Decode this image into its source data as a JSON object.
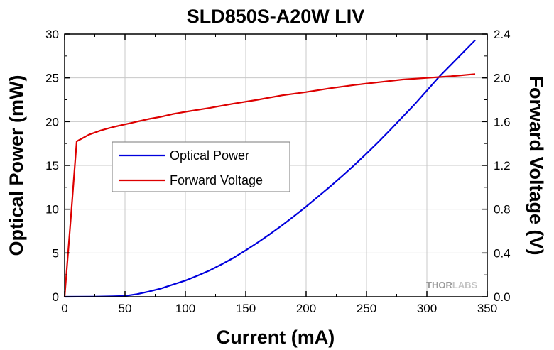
{
  "chart_data": {
    "type": "line",
    "title": "SLD850S-A20W LIV",
    "xlabel": "Current (mA)",
    "ylabel": "Optical Power (mW)",
    "y2label": "Forward Voltage (V)",
    "xlim": [
      0,
      350
    ],
    "ylim": [
      0,
      30
    ],
    "y2lim": [
      0,
      2.4
    ],
    "xticks": [
      "0",
      "50",
      "100",
      "150",
      "200",
      "250",
      "300",
      "350"
    ],
    "yticks": [
      "0",
      "5",
      "10",
      "15",
      "20",
      "25",
      "30"
    ],
    "y2ticks": [
      "0.0",
      "0.4",
      "0.8",
      "1.2",
      "1.6",
      "2.0",
      "2.4"
    ],
    "grid": true,
    "legend_position": "center-left",
    "series": [
      {
        "name": "Optical Power",
        "axis": "left",
        "color": "#0000dd",
        "x": [
          0,
          25,
          40,
          50,
          60,
          70,
          80,
          90,
          100,
          110,
          120,
          130,
          140,
          150,
          160,
          170,
          180,
          190,
          200,
          210,
          220,
          230,
          240,
          250,
          260,
          270,
          280,
          290,
          300,
          310,
          320,
          330,
          340
        ],
        "y": [
          0,
          0.02,
          0.06,
          0.1,
          0.3,
          0.6,
          0.95,
          1.4,
          1.85,
          2.4,
          3.0,
          3.7,
          4.45,
          5.3,
          6.2,
          7.15,
          8.15,
          9.2,
          10.3,
          11.45,
          12.6,
          13.8,
          15.05,
          16.35,
          17.7,
          19.1,
          20.55,
          22.0,
          23.55,
          25.1,
          26.5,
          27.9,
          29.3
        ]
      },
      {
        "name": "Forward Voltage",
        "axis": "right",
        "color": "#dd0000",
        "x": [
          0,
          5,
          10,
          15,
          20,
          30,
          40,
          50,
          60,
          70,
          80,
          90,
          100,
          120,
          140,
          160,
          180,
          200,
          220,
          240,
          260,
          280,
          300,
          320,
          340
        ],
        "y": [
          0,
          0.7,
          1.42,
          1.45,
          1.48,
          1.52,
          1.55,
          1.575,
          1.6,
          1.625,
          1.645,
          1.67,
          1.69,
          1.725,
          1.765,
          1.8,
          1.84,
          1.87,
          1.905,
          1.935,
          1.96,
          1.985,
          2.0,
          2.015,
          2.035
        ]
      }
    ]
  },
  "watermark": {
    "text_dark": "THOR",
    "text_light": "LABS"
  }
}
